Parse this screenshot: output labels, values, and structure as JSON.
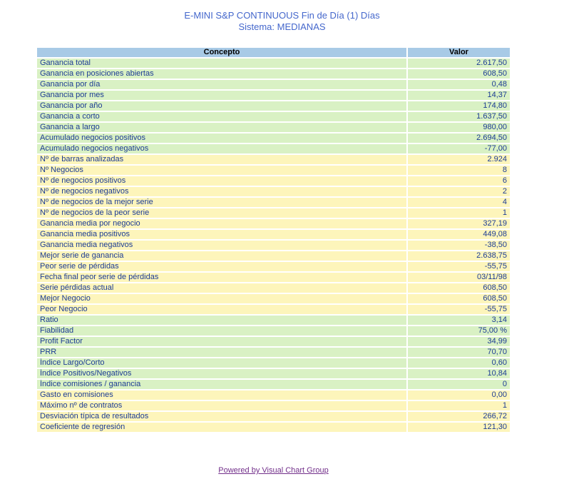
{
  "title": {
    "line1": "E-MINI S&P CONTINUOUS Fin de Día (1) Días",
    "line2": "Sistema: MEDIANAS"
  },
  "table": {
    "headers": [
      "Concepto",
      "Valor"
    ],
    "rows": [
      {
        "concept": "Ganancia total",
        "value": "2.617,50",
        "tone": "green"
      },
      {
        "concept": "Ganancia en posiciones abiertas",
        "value": "608,50",
        "tone": "green"
      },
      {
        "concept": "Ganancia por día",
        "value": "0,48",
        "tone": "green"
      },
      {
        "concept": "Ganancia por mes",
        "value": "14,37",
        "tone": "green"
      },
      {
        "concept": "Ganancia por año",
        "value": "174,80",
        "tone": "green"
      },
      {
        "concept": "Ganancia a corto",
        "value": "1.637,50",
        "tone": "green"
      },
      {
        "concept": "Ganancia a largo",
        "value": "980,00",
        "tone": "green"
      },
      {
        "concept": "Acumulado negocios positivos",
        "value": "2.694,50",
        "tone": "green"
      },
      {
        "concept": "Acumulado negocios negativos",
        "value": "-77,00",
        "tone": "green"
      },
      {
        "concept": "Nº de barras analizadas",
        "value": "2.924",
        "tone": "yellow"
      },
      {
        "concept": "Nº Negocios",
        "value": "8",
        "tone": "yellow"
      },
      {
        "concept": "Nº de negocios positivos",
        "value": "6",
        "tone": "yellow"
      },
      {
        "concept": "Nº de negocios negativos",
        "value": "2",
        "tone": "yellow"
      },
      {
        "concept": "Nº de negocios de la mejor serie",
        "value": "4",
        "tone": "yellow"
      },
      {
        "concept": "Nº de negocios de la peor serie",
        "value": "1",
        "tone": "yellow"
      },
      {
        "concept": "Ganancia media por negocio",
        "value": "327,19",
        "tone": "yellow"
      },
      {
        "concept": "Ganancia media positivos",
        "value": "449,08",
        "tone": "yellow"
      },
      {
        "concept": "Ganancia media negativos",
        "value": "-38,50",
        "tone": "yellow"
      },
      {
        "concept": "Mejor serie de ganancia",
        "value": "2.638,75",
        "tone": "yellow"
      },
      {
        "concept": "Peor serie de pérdidas",
        "value": "-55,75",
        "tone": "yellow"
      },
      {
        "concept": "Fecha final peor serie de pérdidas",
        "value": "03/11/98",
        "tone": "yellow"
      },
      {
        "concept": "Serie pérdidas actual",
        "value": "608,50",
        "tone": "yellow"
      },
      {
        "concept": "Mejor Negocio",
        "value": "608,50",
        "tone": "yellow"
      },
      {
        "concept": "Peor Negocio",
        "value": "-55,75",
        "tone": "yellow"
      },
      {
        "concept": "Ratio",
        "value": "3,14",
        "tone": "green"
      },
      {
        "concept": "Fiabilidad",
        "value": "75,00 %",
        "tone": "green"
      },
      {
        "concept": "Profit Factor",
        "value": "34,99",
        "tone": "green"
      },
      {
        "concept": "PRR",
        "value": "70,70",
        "tone": "green"
      },
      {
        "concept": "Índice Largo/Corto",
        "value": "0,60",
        "tone": "green"
      },
      {
        "concept": "Índice Positivos/Negativos",
        "value": "10,84",
        "tone": "green"
      },
      {
        "concept": "Índice comisiones / ganancia",
        "value": "0",
        "tone": "green"
      },
      {
        "concept": "Gasto en comisiones",
        "value": "0,00",
        "tone": "yellow"
      },
      {
        "concept": "Máximo nº de contratos",
        "value": "1",
        "tone": "yellow"
      },
      {
        "concept": "Desviación típica de resultados",
        "value": "266,72",
        "tone": "yellow"
      },
      {
        "concept": "Coeficiente de regresión",
        "value": "121,30",
        "tone": "yellow"
      }
    ]
  },
  "footer": {
    "link_text": "Powered by Visual Chart Group"
  },
  "colors": {
    "title_blue": "#4467cc",
    "header_blue": "#a8cae6",
    "row_green": "#d9f1c4",
    "row_yellow": "#fdf5bb",
    "cell_text_navy": "#1c3c94",
    "link_purple": "#722f8a",
    "background": "#ffffff"
  }
}
